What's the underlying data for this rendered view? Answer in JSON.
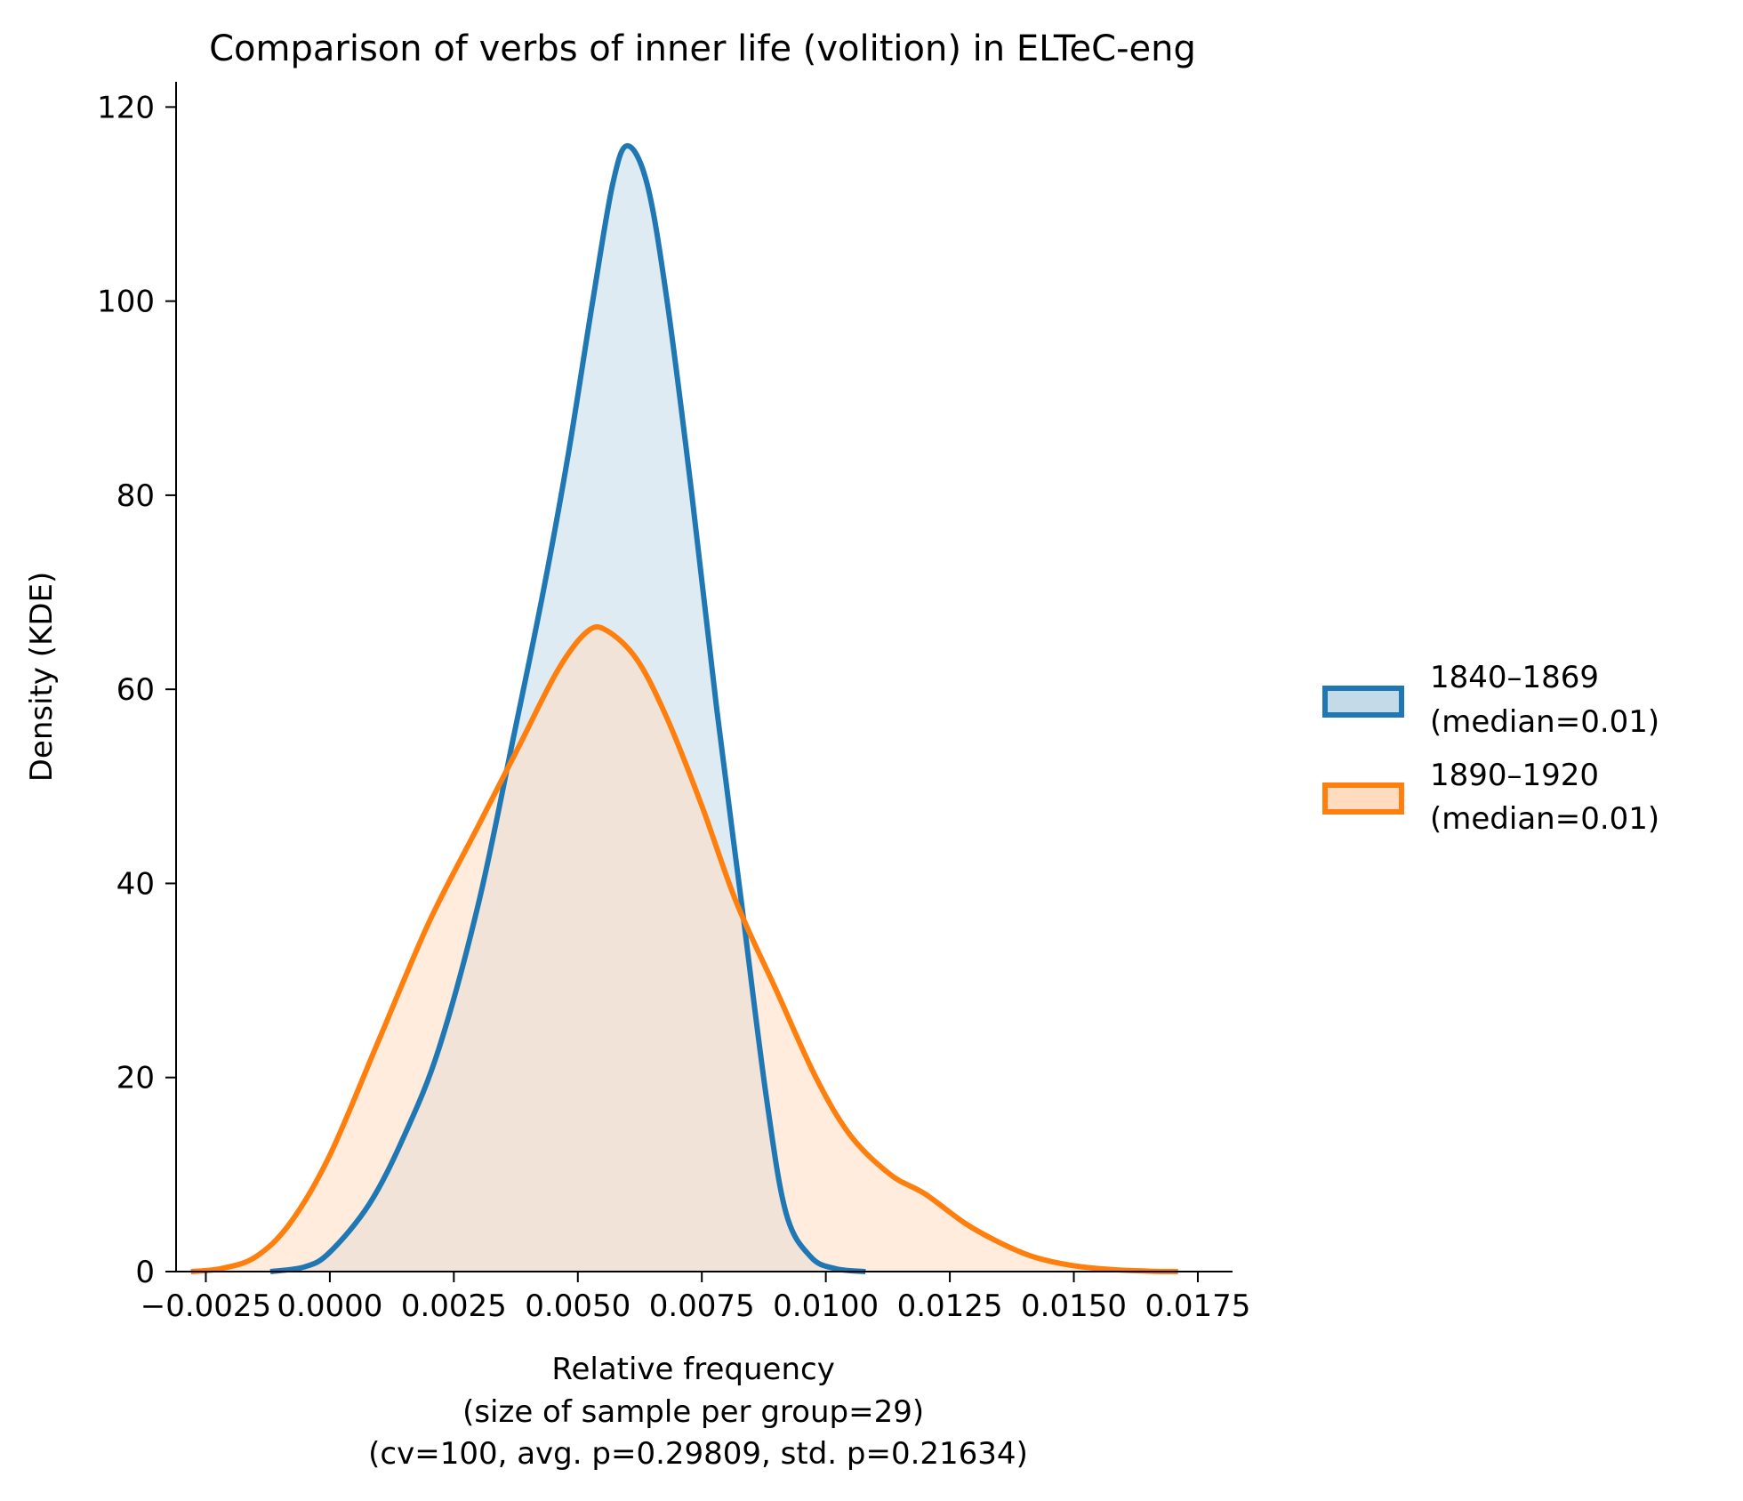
{
  "chart_data": {
    "type": "area",
    "title": "Comparison of verbs of inner life (volition) in ELTeC-eng",
    "xlabel": "Relative frequency",
    "xlabel_lines": [
      "(size of sample per group=29)",
      "(cv=100, avg. p=0.29809, std. p=0.21634)"
    ],
    "ylabel": "Density (KDE)",
    "xlim": [
      -0.0031,
      0.0182
    ],
    "ylim": [
      0,
      120
    ],
    "xticks": [
      -0.0025,
      0.0,
      0.0025,
      0.005,
      0.0075,
      0.01,
      0.0125,
      0.015,
      0.0175
    ],
    "xtick_labels": [
      "−0.0025",
      "0.0000",
      "0.0025",
      "0.0050",
      "0.0075",
      "0.0100",
      "0.0125",
      "0.0150",
      "0.0175"
    ],
    "yticks": [
      0,
      20,
      40,
      60,
      80,
      100,
      120
    ],
    "ytick_labels": [
      "0",
      "20",
      "40",
      "60",
      "80",
      "100",
      "120"
    ],
    "grid": false,
    "legend": "right",
    "series": [
      {
        "name": "1840–1869\n(median=0.01)",
        "legend_lines": [
          "1840–1869",
          "(median=0.01)"
        ],
        "color": "#1f77b4",
        "fill": "#c5dae9",
        "x": [
          -0.0012,
          -0.0005,
          0.0,
          0.0008,
          0.0015,
          0.0022,
          0.003,
          0.0037,
          0.0043,
          0.0048,
          0.0053,
          0.0057,
          0.006,
          0.0064,
          0.0068,
          0.0073,
          0.0078,
          0.0083,
          0.0088,
          0.0092,
          0.0097,
          0.0102,
          0.0108
        ],
        "y": [
          0,
          0.5,
          2,
          7,
          14,
          23,
          38,
          55,
          70,
          84,
          100,
          112,
          116,
          112,
          100,
          80,
          58,
          38,
          18,
          6,
          1.5,
          0.3,
          0
        ]
      },
      {
        "name": "1890–1920\n(median=0.01)",
        "legend_lines": [
          "1890–1920",
          "(median=0.01)"
        ],
        "color": "#ff7f0e",
        "fill": "#ffdcbf",
        "x": [
          -0.0028,
          -0.0022,
          -0.0015,
          -0.0008,
          0.0,
          0.001,
          0.002,
          0.003,
          0.0038,
          0.0046,
          0.0052,
          0.0056,
          0.0062,
          0.0068,
          0.0075,
          0.0082,
          0.009,
          0.0098,
          0.0105,
          0.0113,
          0.012,
          0.0128,
          0.0135,
          0.0142,
          0.015,
          0.0158,
          0.0165,
          0.0171
        ],
        "y": [
          0,
          0.3,
          1.5,
          5,
          12,
          24,
          36,
          46,
          54,
          62,
          66,
          66,
          63,
          57,
          48,
          38,
          29,
          20,
          14,
          10,
          8,
          5,
          3,
          1.5,
          0.6,
          0.2,
          0.05,
          0
        ]
      }
    ]
  }
}
